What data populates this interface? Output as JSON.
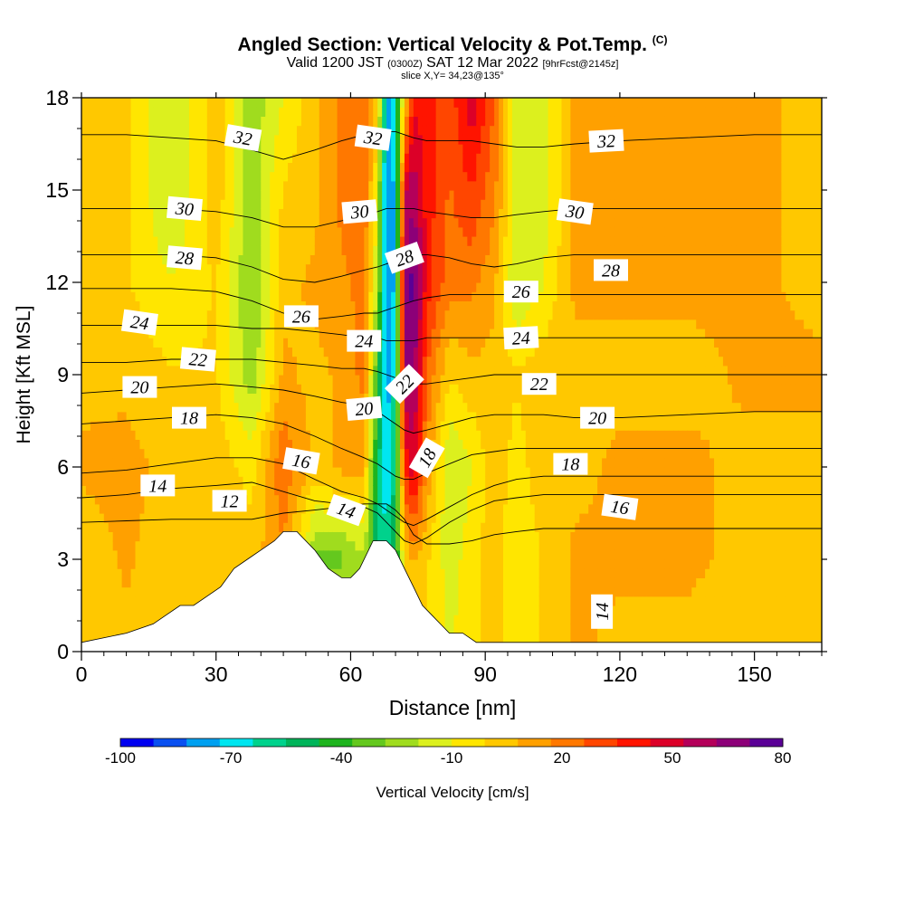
{
  "title": {
    "main": "Angled Section: Vertical Velocity & Pot.Temp.",
    "copyright": "(C)",
    "valid_a": "Valid 1200 JST",
    "valid_z": "(0300Z)",
    "valid_b": "SAT 12 Mar 2022",
    "valid_fcst": "[9hrFcst@2145z]",
    "slice": "slice X,Y= 34,23@135°"
  },
  "chart_data": {
    "type": "heatmap",
    "xlabel": "Distance [nm]",
    "ylabel": "Height [Kft MSL]",
    "xlim": [
      0,
      165
    ],
    "ylim": [
      0,
      18
    ],
    "x_ticks": [
      0,
      30,
      60,
      90,
      120,
      150
    ],
    "y_ticks": [
      0,
      3,
      6,
      9,
      12,
      15,
      18
    ],
    "colorbar": {
      "label": "Vertical Velocity [cm/s]",
      "tick_labels": [
        -100,
        -70,
        -40,
        -10,
        20,
        50,
        80
      ],
      "min": -100,
      "max": 80,
      "colors": [
        "#0000f0",
        "#0a50f0",
        "#00a0f0",
        "#00e6f0",
        "#00d28c",
        "#00b45a",
        "#1eb41e",
        "#64c81e",
        "#a0dc1e",
        "#dcf01e",
        "#ffe600",
        "#ffc800",
        "#ffa000",
        "#ff7800",
        "#ff4600",
        "#ff1400",
        "#dc0028",
        "#b4005a",
        "#8c0078",
        "#5a0096"
      ]
    },
    "velocity_field": {
      "x": [
        0,
        10,
        20,
        30,
        38,
        45,
        52,
        58,
        63,
        66,
        68,
        70,
        72,
        74,
        77,
        82,
        87,
        92,
        97,
        103,
        110,
        120,
        135,
        150,
        165
      ],
      "z": [
        0,
        3,
        6,
        9,
        12,
        15,
        18
      ],
      "values_cm_s": [
        [
          0,
          5,
          0,
          5,
          0,
          5,
          2,
          5,
          0,
          -60,
          -50,
          -40,
          -20,
          0,
          0,
          -10,
          -5,
          5,
          -10,
          0,
          10,
          5,
          5,
          0,
          5
        ],
        [
          0,
          10,
          0,
          5,
          5,
          15,
          -30,
          -30,
          -20,
          -60,
          -60,
          -50,
          0,
          10,
          0,
          -15,
          -5,
          5,
          -10,
          0,
          10,
          10,
          10,
          5,
          5
        ],
        [
          10,
          12,
          5,
          5,
          -5,
          25,
          5,
          10,
          10,
          -50,
          -75,
          -50,
          35,
          50,
          15,
          -20,
          -10,
          5,
          -5,
          5,
          5,
          10,
          10,
          5,
          5
        ],
        [
          5,
          5,
          0,
          0,
          -25,
          10,
          5,
          10,
          20,
          -40,
          -80,
          -60,
          60,
          65,
          25,
          0,
          5,
          5,
          0,
          5,
          5,
          5,
          5,
          10,
          10
        ],
        [
          5,
          0,
          -10,
          0,
          -30,
          5,
          10,
          15,
          20,
          -20,
          -85,
          -70,
          65,
          75,
          40,
          20,
          20,
          10,
          -20,
          -10,
          10,
          10,
          10,
          10,
          5
        ],
        [
          5,
          0,
          -20,
          5,
          -25,
          0,
          5,
          20,
          25,
          -10,
          -85,
          -70,
          50,
          60,
          40,
          25,
          35,
          20,
          -15,
          -15,
          10,
          10,
          10,
          10,
          5
        ],
        [
          5,
          0,
          -20,
          5,
          -25,
          -10,
          5,
          20,
          25,
          5,
          -80,
          -60,
          0,
          40,
          40,
          30,
          50,
          25,
          -15,
          -15,
          10,
          10,
          10,
          10,
          5
        ]
      ]
    },
    "terrain_kft": {
      "x": [
        0,
        10,
        16,
        19,
        22,
        25,
        28,
        31,
        34,
        37,
        40,
        43,
        45,
        48,
        52,
        55,
        58,
        60,
        62,
        65,
        68,
        70,
        72,
        74,
        76,
        78,
        80,
        82,
        85,
        88,
        165
      ],
      "z": [
        0.3,
        0.6,
        0.9,
        1.2,
        1.5,
        1.5,
        1.8,
        2.1,
        2.7,
        3.0,
        3.3,
        3.6,
        3.9,
        3.9,
        3.3,
        2.7,
        2.4,
        2.4,
        2.7,
        3.6,
        3.6,
        3.3,
        2.7,
        2.1,
        1.5,
        1.2,
        0.9,
        0.6,
        0.6,
        0.3,
        0.3
      ]
    },
    "isentropes_c": [
      {
        "label": "12",
        "z": [
          4.2,
          4.25,
          4.3,
          4.3,
          4.3,
          4.5,
          4.6,
          4.7,
          4.8,
          4.8,
          4.8,
          4.6,
          4.3,
          3.8,
          3.5,
          3.5,
          3.6,
          3.8,
          3.9,
          4.0,
          4.0,
          4.0,
          4.0,
          4.0,
          4.0
        ]
      },
      {
        "label": "14",
        "z": [
          5.0,
          5.1,
          5.3,
          5.4,
          5.5,
          5.2,
          4.9,
          4.8,
          4.7,
          4.5,
          4.2,
          3.9,
          3.6,
          3.5,
          3.7,
          4.2,
          4.6,
          4.9,
          5.0,
          5.1,
          5.1,
          5.1,
          5.1,
          5.1,
          5.1
        ]
      },
      {
        "label": "16",
        "z": [
          5.8,
          5.9,
          6.1,
          6.3,
          6.3,
          6.1,
          5.6,
          5.2,
          5.0,
          4.8,
          4.6,
          4.4,
          4.2,
          4.1,
          4.3,
          4.7,
          5.1,
          5.4,
          5.6,
          5.7,
          5.7,
          5.7,
          5.7,
          5.7,
          5.7
        ]
      },
      {
        "label": "18",
        "z": [
          7.4,
          7.5,
          7.6,
          7.7,
          7.6,
          7.4,
          7.0,
          6.6,
          6.3,
          6.1,
          5.9,
          5.7,
          5.6,
          5.6,
          5.8,
          6.1,
          6.4,
          6.5,
          6.6,
          6.6,
          6.6,
          6.6,
          6.6,
          6.6,
          6.6
        ]
      },
      {
        "label": "20",
        "z": [
          8.4,
          8.5,
          8.6,
          8.7,
          8.6,
          8.5,
          8.3,
          8.1,
          8.0,
          7.8,
          7.6,
          7.4,
          7.2,
          7.1,
          7.2,
          7.4,
          7.6,
          7.7,
          7.7,
          7.7,
          7.6,
          7.6,
          7.7,
          7.8,
          7.8
        ]
      },
      {
        "label": "22",
        "z": [
          9.4,
          9.4,
          9.5,
          9.5,
          9.5,
          9.4,
          9.3,
          9.2,
          9.2,
          9.1,
          9.0,
          8.9,
          8.8,
          8.7,
          8.7,
          8.8,
          8.9,
          9.0,
          9.0,
          9.0,
          9.0,
          9.0,
          9.0,
          9.0,
          9.0
        ]
      },
      {
        "label": "24",
        "z": [
          10.6,
          10.6,
          10.6,
          10.6,
          10.5,
          10.5,
          10.4,
          10.3,
          10.2,
          10.2,
          10.1,
          10.1,
          10.1,
          10.1,
          10.2,
          10.2,
          10.2,
          10.2,
          10.2,
          10.2,
          10.2,
          10.2,
          10.2,
          10.2,
          10.2
        ]
      },
      {
        "label": "26",
        "z": [
          11.8,
          11.8,
          11.8,
          11.7,
          11.4,
          11.0,
          10.8,
          10.9,
          11.0,
          11.0,
          11.1,
          11.2,
          11.3,
          11.4,
          11.5,
          11.6,
          11.6,
          11.6,
          11.6,
          11.6,
          11.6,
          11.6,
          11.6,
          11.6,
          11.6
        ]
      },
      {
        "label": "28",
        "z": [
          12.9,
          12.9,
          12.9,
          12.8,
          12.5,
          12.1,
          12.0,
          12.2,
          12.4,
          12.5,
          12.6,
          12.7,
          12.8,
          12.9,
          12.9,
          12.8,
          12.6,
          12.5,
          12.6,
          12.8,
          12.9,
          12.9,
          12.9,
          12.9,
          12.9
        ]
      },
      {
        "label": "30",
        "z": [
          14.4,
          14.4,
          14.4,
          14.3,
          14.1,
          13.8,
          13.8,
          14.0,
          14.2,
          14.3,
          14.4,
          14.4,
          14.4,
          14.4,
          14.3,
          14.2,
          14.1,
          14.1,
          14.2,
          14.3,
          14.4,
          14.4,
          14.4,
          14.4,
          14.4
        ]
      },
      {
        "label": "32",
        "z": [
          16.8,
          16.8,
          16.7,
          16.6,
          16.3,
          16.0,
          16.3,
          16.6,
          16.8,
          16.9,
          16.9,
          16.9,
          16.8,
          16.7,
          16.6,
          16.6,
          16.6,
          16.5,
          16.4,
          16.4,
          16.5,
          16.6,
          16.7,
          16.8,
          16.8
        ]
      }
    ],
    "contour_labels": [
      {
        "text": "32",
        "x": 36,
        "z": 16.7,
        "angle": 10
      },
      {
        "text": "32",
        "x": 65,
        "z": 16.7,
        "angle": 8
      },
      {
        "text": "32",
        "x": 117,
        "z": 16.6,
        "angle": -3
      },
      {
        "text": "30",
        "x": 23,
        "z": 14.4,
        "angle": 5
      },
      {
        "text": "30",
        "x": 62,
        "z": 14.3,
        "angle": -5
      },
      {
        "text": "30",
        "x": 110,
        "z": 14.3,
        "angle": 8
      },
      {
        "text": "28",
        "x": 23,
        "z": 12.8,
        "angle": 5
      },
      {
        "text": "28",
        "x": 72,
        "z": 12.8,
        "angle": -20
      },
      {
        "text": "28",
        "x": 118,
        "z": 12.4,
        "angle": 0
      },
      {
        "text": "26",
        "x": 49,
        "z": 10.9,
        "angle": 0
      },
      {
        "text": "26",
        "x": 98,
        "z": 11.7,
        "angle": 0
      },
      {
        "text": "24",
        "x": 13,
        "z": 10.7,
        "angle": 8
      },
      {
        "text": "24",
        "x": 63,
        "z": 10.1,
        "angle": 0
      },
      {
        "text": "24",
        "x": 98,
        "z": 10.2,
        "angle": -3
      },
      {
        "text": "22",
        "x": 26,
        "z": 9.5,
        "angle": 5
      },
      {
        "text": "22",
        "x": 72,
        "z": 8.7,
        "angle": -45
      },
      {
        "text": "22",
        "x": 102,
        "z": 8.7,
        "angle": 0
      },
      {
        "text": "20",
        "x": 13,
        "z": 8.6,
        "angle": 0
      },
      {
        "text": "20",
        "x": 63,
        "z": 7.9,
        "angle": -5
      },
      {
        "text": "20",
        "x": 115,
        "z": 7.6,
        "angle": 0
      },
      {
        "text": "18",
        "x": 24,
        "z": 7.6,
        "angle": 0
      },
      {
        "text": "18",
        "x": 77,
        "z": 6.3,
        "angle": -60
      },
      {
        "text": "18",
        "x": 109,
        "z": 6.1,
        "angle": 0
      },
      {
        "text": "16",
        "x": 49,
        "z": 6.2,
        "angle": 10
      },
      {
        "text": "16",
        "x": 120,
        "z": 4.7,
        "angle": 8
      },
      {
        "text": "14",
        "x": 17,
        "z": 5.4,
        "angle": 0
      },
      {
        "text": "14",
        "x": 59,
        "z": 4.6,
        "angle": 20
      },
      {
        "text": "14",
        "x": 116,
        "z": 1.3,
        "angle": -90
      },
      {
        "text": "12",
        "x": 33,
        "z": 4.9,
        "angle": 0
      }
    ]
  }
}
